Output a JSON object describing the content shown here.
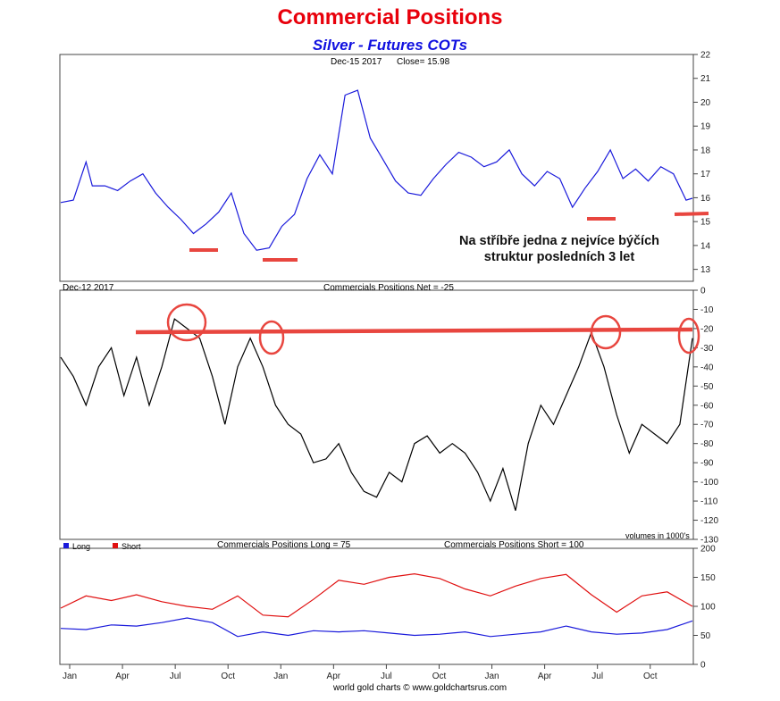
{
  "title": "Commercial Positions",
  "subtitle": "Silver - Futures COTs",
  "footer": "world gold charts © www.goldchartsrus.com",
  "colors": {
    "title": "#e8000b",
    "subtitle": "#1010e0",
    "price_line": "#1a1adb",
    "net_line": "#000000",
    "long_line": "#1a1adb",
    "short_line": "#e01010",
    "annotation": "#e8463f"
  },
  "chart_data": [
    {
      "type": "line",
      "panel": "price",
      "header_left": "Dec-15  2017",
      "header_value": "Close= 15.98",
      "ylim": [
        12.5,
        22
      ],
      "yticks": [
        "13",
        "14",
        "15",
        "16",
        "17",
        "18",
        "19",
        "20",
        "21",
        "22"
      ],
      "annotation_text": [
        "Na stříbře jedna z nejvíce býčích",
        "struktur posledních 3 let"
      ],
      "series": [
        {
          "x": [
            0,
            0.02,
            0.04,
            0.05,
            0.07,
            0.09,
            0.11,
            0.13,
            0.15,
            0.17,
            0.19,
            0.21,
            0.23,
            0.25,
            0.27,
            0.29,
            0.31,
            0.33,
            0.35,
            0.37,
            0.39,
            0.41,
            0.43,
            0.45,
            0.47,
            0.49,
            0.51,
            0.53,
            0.55,
            0.57,
            0.59,
            0.61,
            0.63,
            0.65,
            0.67,
            0.69,
            0.71,
            0.73,
            0.75,
            0.77,
            0.79,
            0.81,
            0.83,
            0.85,
            0.87,
            0.89,
            0.91,
            0.93,
            0.95,
            0.97,
            0.99,
            1.0
          ],
          "values": [
            15.8,
            15.9,
            17.5,
            16.5,
            16.5,
            16.3,
            16.7,
            17.0,
            16.2,
            15.6,
            15.1,
            14.5,
            14.9,
            15.4,
            16.2,
            14.5,
            13.8,
            13.9,
            14.8,
            15.3,
            16.8,
            17.8,
            17.0,
            20.3,
            20.5,
            18.5,
            17.6,
            16.7,
            16.2,
            16.1,
            16.8,
            17.4,
            17.9,
            17.7,
            17.3,
            17.5,
            18.0,
            17.0,
            16.5,
            17.1,
            16.8,
            15.6,
            16.4,
            17.1,
            18.0,
            16.8,
            17.2,
            16.7,
            17.3,
            17.0,
            15.9,
            15.98
          ]
        }
      ]
    },
    {
      "type": "line",
      "panel": "net",
      "header_left": "Dec-12  2017",
      "header_value": "Commercials Positions Net = -25",
      "units_note": "volumes in 1000's",
      "ylim": [
        -130,
        0
      ],
      "yticks": [
        "0",
        "-10",
        "-20",
        "-30",
        "-40",
        "-50",
        "-60",
        "-70",
        "-80",
        "-90",
        "-100",
        "-110",
        "-120",
        "-130"
      ],
      "series": [
        {
          "x": [
            0,
            0.02,
            0.04,
            0.06,
            0.08,
            0.1,
            0.12,
            0.14,
            0.16,
            0.18,
            0.2,
            0.22,
            0.24,
            0.26,
            0.28,
            0.3,
            0.32,
            0.34,
            0.36,
            0.38,
            0.4,
            0.42,
            0.44,
            0.46,
            0.48,
            0.5,
            0.52,
            0.54,
            0.56,
            0.58,
            0.6,
            0.62,
            0.64,
            0.66,
            0.68,
            0.7,
            0.72,
            0.74,
            0.76,
            0.78,
            0.8,
            0.82,
            0.84,
            0.86,
            0.88,
            0.9,
            0.92,
            0.94,
            0.96,
            0.98,
            1.0
          ],
          "values": [
            -35,
            -45,
            -60,
            -40,
            -30,
            -55,
            -35,
            -60,
            -40,
            -15,
            -20,
            -25,
            -45,
            -70,
            -40,
            -25,
            -40,
            -60,
            -70,
            -75,
            -90,
            -88,
            -80,
            -95,
            -105,
            -108,
            -95,
            -100,
            -80,
            -76,
            -85,
            -80,
            -85,
            -95,
            -110,
            -93,
            -115,
            -80,
            -60,
            -70,
            -55,
            -40,
            -22,
            -40,
            -65,
            -85,
            -70,
            -75,
            -80,
            -70,
            -25
          ]
        }
      ]
    },
    {
      "type": "line",
      "panel": "long_short",
      "legend": [
        "Long",
        "Short"
      ],
      "header_long": "Commercials Positions Long = 75",
      "header_short": "Commercials Positions Short = 100",
      "ylim": [
        0,
        200
      ],
      "yticks": [
        "0",
        "50",
        "100",
        "150",
        "200"
      ],
      "xticks": [
        "Jan",
        "Apr",
        "Jul",
        "Oct",
        "Jan",
        "Apr",
        "Jul",
        "Oct",
        "Jan",
        "Apr",
        "Jul",
        "Oct"
      ],
      "series": [
        {
          "name": "Long",
          "x": [
            0,
            0.04,
            0.08,
            0.12,
            0.16,
            0.2,
            0.24,
            0.28,
            0.32,
            0.36,
            0.4,
            0.44,
            0.48,
            0.52,
            0.56,
            0.6,
            0.64,
            0.68,
            0.72,
            0.76,
            0.8,
            0.84,
            0.88,
            0.92,
            0.96,
            1.0
          ],
          "values": [
            62,
            60,
            68,
            66,
            72,
            80,
            72,
            48,
            56,
            50,
            58,
            56,
            58,
            54,
            50,
            52,
            56,
            48,
            52,
            56,
            66,
            56,
            52,
            54,
            60,
            75
          ]
        },
        {
          "name": "Short",
          "x": [
            0,
            0.04,
            0.08,
            0.12,
            0.16,
            0.2,
            0.24,
            0.28,
            0.32,
            0.36,
            0.4,
            0.44,
            0.48,
            0.52,
            0.56,
            0.6,
            0.64,
            0.68,
            0.72,
            0.76,
            0.8,
            0.84,
            0.88,
            0.92,
            0.96,
            1.0
          ],
          "values": [
            97,
            118,
            110,
            120,
            108,
            100,
            95,
            118,
            85,
            82,
            112,
            145,
            138,
            150,
            156,
            148,
            130,
            118,
            135,
            148,
            155,
            120,
            90,
            118,
            125,
            100
          ]
        }
      ]
    }
  ]
}
